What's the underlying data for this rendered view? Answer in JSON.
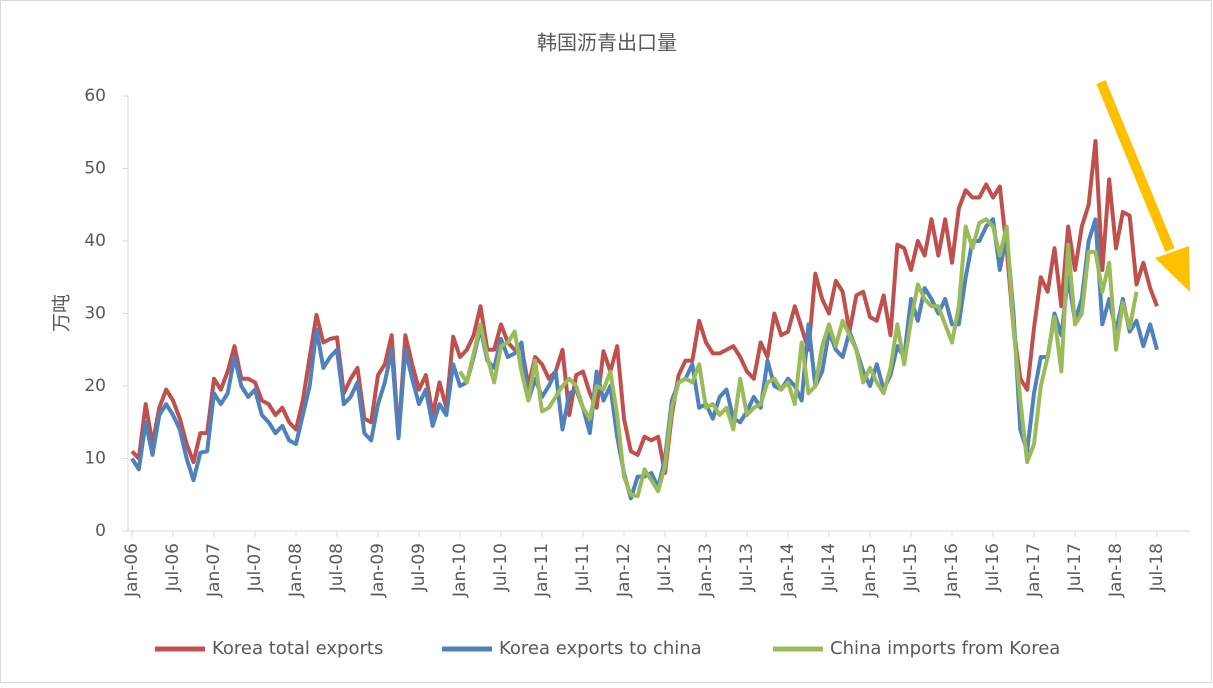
{
  "chart_data": {
    "type": "line",
    "title": "韩国沥青出口量",
    "y_label": "万吨",
    "categories": [
      "Jan-06",
      null,
      null,
      null,
      null,
      null,
      "Jul-06",
      null,
      null,
      null,
      null,
      null,
      "Jan-07",
      null,
      null,
      null,
      null,
      null,
      "Jul-07",
      null,
      null,
      null,
      null,
      null,
      "Jan-08",
      null,
      null,
      null,
      null,
      null,
      "Jul-08",
      null,
      null,
      null,
      null,
      null,
      "Jan-09",
      null,
      null,
      null,
      null,
      null,
      "Jul-09",
      null,
      null,
      null,
      null,
      null,
      "Jan-10",
      null,
      null,
      null,
      null,
      null,
      "Jul-10",
      null,
      null,
      null,
      null,
      null,
      "Jan-11",
      null,
      null,
      null,
      null,
      null,
      "Jul-11",
      null,
      null,
      null,
      null,
      null,
      "Jan-12",
      null,
      null,
      null,
      null,
      null,
      "Jul-12",
      null,
      null,
      null,
      null,
      null,
      "Jan-13",
      null,
      null,
      null,
      null,
      null,
      "Jul-13",
      null,
      null,
      null,
      null,
      null,
      "Jan-14",
      null,
      null,
      null,
      null,
      null,
      "Jul-14",
      null,
      null,
      null,
      null,
      null,
      "Jan-15",
      null,
      null,
      null,
      null,
      null,
      "Jul-15",
      null,
      null,
      null,
      null,
      null,
      "Jan-16",
      null,
      null,
      null,
      null,
      null,
      "Jul-16",
      null,
      null,
      null,
      null,
      null,
      "Jan-17",
      null,
      null,
      null,
      null,
      null,
      "Jul-17",
      null,
      null,
      null,
      null,
      null,
      "Jan-18",
      null,
      null,
      null,
      null,
      null,
      "Jul-18"
    ],
    "series": [
      {
        "name": "Korea total exports",
        "color": "#C0504D",
        "values": [
          11,
          10,
          17.5,
          12,
          17,
          19.5,
          18,
          15.5,
          12,
          9.5,
          13.5,
          13.5,
          21,
          19.5,
          22,
          25.5,
          21,
          21,
          20.5,
          18,
          17.5,
          16,
          17,
          15,
          14,
          18,
          24,
          29.8,
          26,
          26.5,
          26.7,
          19,
          21,
          22.5,
          15.5,
          15,
          21.5,
          23,
          27,
          13,
          27,
          23,
          19.5,
          21.5,
          16,
          20.5,
          17,
          26.8,
          24,
          25,
          27,
          31,
          25,
          25,
          28.5,
          26,
          25,
          25.5,
          20,
          24,
          23,
          21,
          22,
          25,
          16,
          21.5,
          22,
          19,
          17,
          24.8,
          22,
          25.5,
          15.5,
          11,
          10.5,
          13,
          12.5,
          13,
          8,
          16,
          21.5,
          23.5,
          23.5,
          29,
          26,
          24.5,
          24.5,
          25,
          25.5,
          24,
          22,
          21,
          26,
          24,
          30,
          27,
          27.5,
          31,
          28,
          25,
          35.5,
          32,
          30,
          34.5,
          33,
          27.5,
          32.5,
          33,
          29.5,
          29,
          32.5,
          27,
          39.5,
          39,
          36,
          40,
          38,
          43,
          38,
          43,
          37,
          44.5,
          47,
          46,
          46,
          47.8,
          46,
          47.5,
          39,
          28,
          21,
          19.5,
          28,
          35,
          33,
          39,
          31,
          42,
          36,
          42,
          45,
          53.8,
          36,
          48.5,
          39,
          44,
          43.5,
          34,
          37,
          33.5,
          31
        ]
      },
      {
        "name": "Korea exports to china",
        "color": "#4F81BD",
        "values": [
          10,
          8.5,
          15,
          10.5,
          16,
          17.5,
          16,
          14,
          10,
          7,
          10.8,
          11,
          19,
          17.5,
          19,
          24,
          20,
          18.5,
          19.5,
          16,
          15,
          13.5,
          14.5,
          12.5,
          12,
          16,
          20,
          27.8,
          22.5,
          24,
          25,
          17.5,
          18.5,
          20.5,
          13.5,
          12.5,
          17.5,
          20.5,
          25,
          12.8,
          25,
          21,
          17.5,
          19.5,
          14.5,
          17.5,
          16,
          23,
          20,
          20.5,
          24,
          28,
          23.5,
          22.5,
          26.5,
          24,
          24.5,
          26,
          18,
          21,
          18.5,
          20,
          22,
          14,
          19,
          19.5,
          17,
          13.5,
          22,
          18,
          20,
          13,
          8,
          4.5,
          7.5,
          7.5,
          8,
          6,
          10,
          18,
          20.5,
          21,
          23,
          17,
          17.5,
          15.5,
          18.5,
          19.5,
          15.5,
          15,
          16.5,
          18.5,
          17,
          23.5,
          20,
          19.5,
          21,
          20,
          18,
          28.5,
          20,
          22,
          27.5,
          25,
          24,
          27.5,
          25,
          22,
          20,
          23,
          19.5,
          21.5,
          25.5,
          24,
          32,
          29,
          33.5,
          32,
          30,
          32,
          28.5,
          28.5,
          35,
          40,
          40,
          42,
          43,
          36,
          41,
          30,
          14,
          11,
          19,
          24,
          24,
          30,
          27,
          35,
          29,
          32,
          40,
          43,
          28.5,
          32,
          27.5,
          32,
          27.5,
          29,
          25.5,
          28.5,
          25
        ]
      },
      {
        "name": "China imports from Korea",
        "color": "#9BBB59",
        "values": [
          null,
          null,
          null,
          null,
          null,
          null,
          null,
          null,
          null,
          null,
          null,
          null,
          null,
          null,
          null,
          null,
          null,
          null,
          null,
          null,
          null,
          null,
          null,
          null,
          null,
          null,
          null,
          null,
          null,
          null,
          null,
          null,
          null,
          null,
          null,
          null,
          null,
          null,
          null,
          null,
          null,
          null,
          null,
          null,
          null,
          null,
          null,
          null,
          22,
          20.5,
          24.5,
          28.5,
          24,
          20.5,
          25.5,
          26,
          27.5,
          22,
          18,
          23.5,
          16.5,
          17,
          18.5,
          20,
          21,
          20,
          17,
          15.5,
          20,
          19.5,
          22,
          16,
          7.5,
          5,
          4.8,
          8.5,
          7,
          5.5,
          9,
          17,
          20.5,
          21,
          20.5,
          23,
          17,
          17.5,
          16,
          17,
          14,
          21,
          16,
          17,
          17.5,
          20.5,
          21,
          19.5,
          20.5,
          17.5,
          26,
          19,
          20,
          25.5,
          28.5,
          25.5,
          29,
          27,
          25,
          20.5,
          22.5,
          20.5,
          19,
          22.5,
          28.5,
          23,
          29,
          34,
          32,
          31,
          31,
          28.5,
          26,
          31,
          42,
          39,
          42.5,
          43,
          42,
          38,
          42,
          28,
          18,
          9.5,
          12,
          20,
          24,
          29.5,
          22,
          39.5,
          28.5,
          30,
          38.5,
          38.5,
          33,
          37,
          25,
          31.5,
          28,
          33,
          null,
          null,
          null
        ]
      }
    ],
    "ylim": [
      0,
      60
    ],
    "yticks": [
      0,
      10,
      20,
      30,
      40,
      50,
      60
    ],
    "grid": false
  }
}
